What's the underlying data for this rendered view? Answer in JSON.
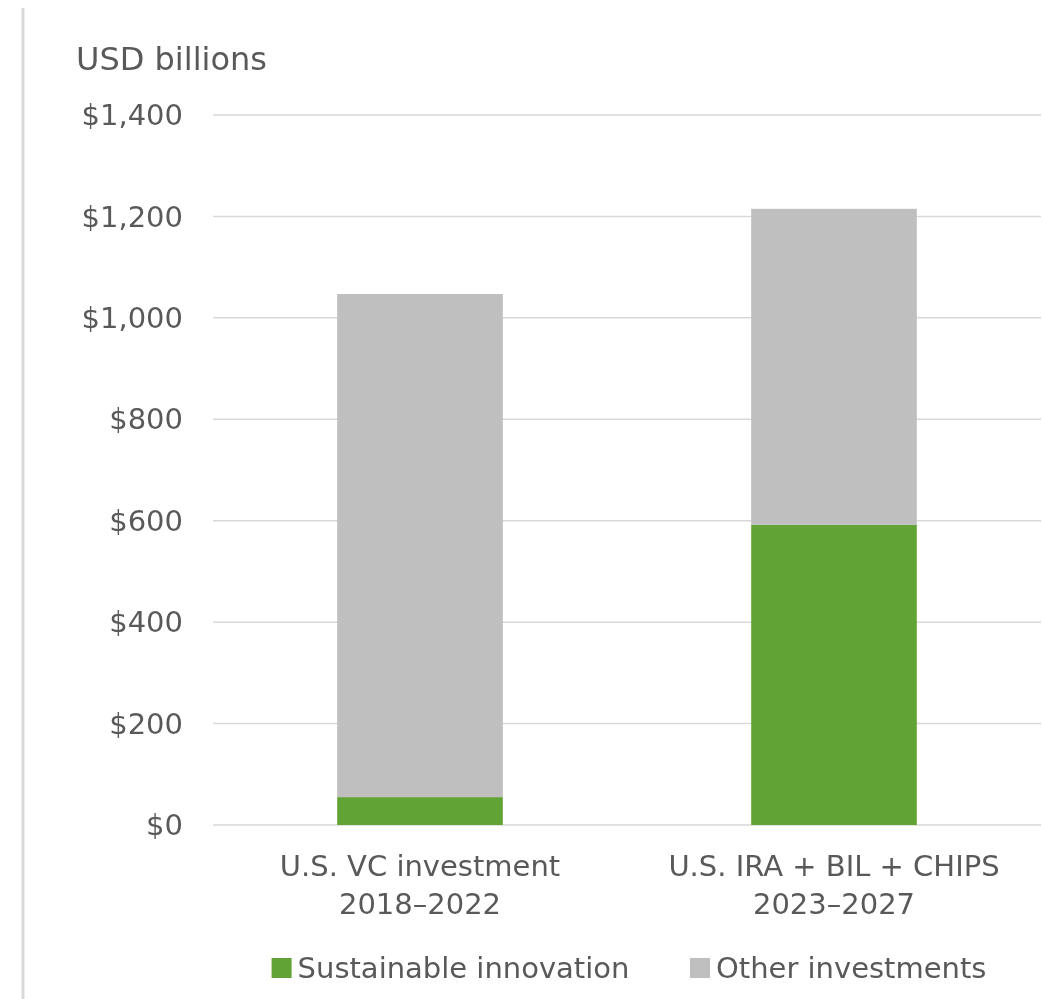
{
  "chart_data": {
    "type": "bar",
    "stacked": true,
    "ylabel": "USD billions",
    "categories": [
      "U.S. VC investment\n2018–2022",
      "U.S. IRA + BIL + CHIPS\n2023–2027"
    ],
    "series": [
      {
        "name": "Sustainable innovation",
        "color": "#61a335",
        "values": [
          55,
          592
        ]
      },
      {
        "name": "Other investments",
        "color": "#bfbfbf",
        "values": [
          992,
          623
        ]
      }
    ],
    "ylim": [
      0,
      1400
    ],
    "yticks": [
      {
        "value": 0,
        "label": "$0"
      },
      {
        "value": 200,
        "label": "$200"
      },
      {
        "value": 400,
        "label": "$400"
      },
      {
        "value": 600,
        "label": "$600"
      },
      {
        "value": 800,
        "label": "$800"
      },
      {
        "value": 1000,
        "label": "$1,000"
      },
      {
        "value": 1200,
        "label": "$1,200"
      },
      {
        "value": 1400,
        "label": "$1,400"
      }
    ],
    "grid": "y",
    "legend": "bottom"
  }
}
